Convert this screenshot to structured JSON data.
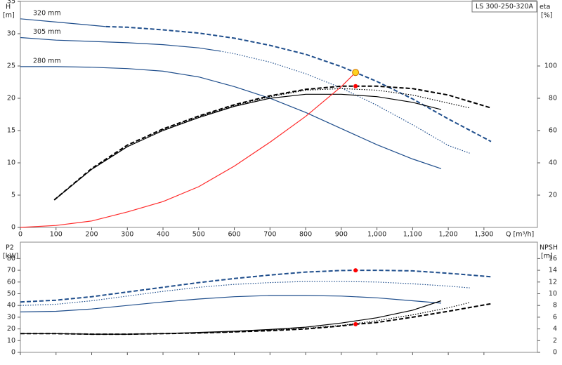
{
  "header": {
    "title": "LS 300-250-320A"
  },
  "chart_data": [
    {
      "type": "line",
      "xlabel": "Q [m³/h]",
      "ylabel": "H",
      "yunit": "[m]",
      "y2label": "eta",
      "y2unit": "[%]",
      "xlim": [
        0,
        1450
      ],
      "ylim": [
        0,
        35
      ],
      "y2lim": [
        0,
        140
      ],
      "xticks": [
        0,
        100,
        200,
        300,
        400,
        500,
        600,
        700,
        800,
        900,
        {
          "value": 1000,
          "label": "1,000"
        },
        {
          "value": 1100,
          "label": "1,100"
        },
        {
          "value": 1200,
          "label": "1,200"
        },
        {
          "value": 1300,
          "label": "1,300"
        }
      ],
      "yticks": [
        0,
        5,
        10,
        15,
        20,
        25,
        30,
        35
      ],
      "y2ticks": [
        20,
        40,
        60,
        80,
        100
      ],
      "show_xtick_labels": true,
      "series": [
        {
          "name": "320 mm",
          "color": "#1f4e8c",
          "style": "solid",
          "x": [
            0,
            100,
            200,
            240
          ],
          "values": [
            32.3,
            31.8,
            31.3,
            31.1
          ]
        },
        {
          "color": "#1f4e8c",
          "style": "dashed",
          "x": [
            240,
            300,
            400,
            500,
            600,
            700,
            800,
            900,
            940,
            1000,
            1100,
            1200,
            1320
          ],
          "values": [
            31.1,
            31.0,
            30.6,
            30.1,
            29.3,
            28.2,
            26.8,
            24.9,
            24.0,
            22.6,
            19.9,
            16.8,
            13.3
          ]
        },
        {
          "name": "305 mm",
          "color": "#1f4e8c",
          "style": "solid",
          "x": [
            0,
            100,
            200,
            300,
            400,
            500,
            560
          ],
          "values": [
            29.4,
            29.0,
            28.8,
            28.6,
            28.3,
            27.8,
            27.3
          ]
        },
        {
          "color": "#1f4e8c",
          "style": "dotted",
          "x": [
            560,
            600,
            700,
            800,
            900,
            1000,
            1100,
            1200,
            1260
          ],
          "values": [
            27.3,
            26.9,
            25.6,
            23.8,
            21.6,
            18.9,
            15.9,
            12.7,
            11.5
          ]
        },
        {
          "name": "280 mm",
          "color": "#1f4e8c",
          "style": "solid",
          "x": [
            0,
            100,
            200,
            300,
            400,
            500,
            600,
            700,
            800,
            900,
            1000,
            1100,
            1180
          ],
          "values": [
            24.9,
            24.9,
            24.8,
            24.6,
            24.2,
            23.3,
            21.8,
            20.0,
            17.8,
            15.3,
            12.8,
            10.6,
            9.1
          ]
        },
        {
          "color": "#000000",
          "style": "solid",
          "axis": "y2",
          "x": [
            95,
            200,
            300,
            400,
            500,
            600,
            700,
            800,
            900,
            1000,
            1100,
            1180
          ],
          "values": [
            17,
            36,
            50,
            60,
            68,
            75,
            80,
            82.5,
            82.5,
            81,
            77.5,
            73
          ]
        },
        {
          "color": "#000000",
          "style": "dotted",
          "axis": "y2",
          "x": [
            95,
            200,
            300,
            400,
            500,
            600,
            700,
            800,
            900,
            1000,
            1100,
            1200,
            1260
          ],
          "values": [
            17,
            36,
            50,
            60.5,
            68.5,
            75.5,
            81,
            85,
            86,
            85,
            82,
            77,
            74
          ]
        },
        {
          "color": "#000000",
          "style": "dashed",
          "axis": "y2",
          "x": [
            95,
            200,
            300,
            400,
            500,
            600,
            700,
            800,
            900,
            1000,
            1100,
            1200,
            1320
          ],
          "values": [
            17,
            36.5,
            51,
            61,
            69,
            76,
            81.5,
            85.5,
            87.5,
            87.5,
            86,
            82,
            74
          ]
        },
        {
          "color": "#ff2a2a",
          "style": "solid",
          "x": [
            0,
            100,
            200,
            300,
            400,
            500,
            600,
            700,
            800,
            900,
            940
          ],
          "values": [
            0,
            0.3,
            1.0,
            2.4,
            4.0,
            6.3,
            9.5,
            13.2,
            17.2,
            21.8,
            24.0
          ]
        }
      ],
      "markers": [
        {
          "x": 940,
          "y": 24.0,
          "color": "#ffd21f"
        },
        {
          "x": 940,
          "y": 87.5,
          "axis": "y2",
          "color": "#ff0000"
        }
      ]
    },
    {
      "type": "line",
      "ylabel": "P2",
      "yunit": "[kW]",
      "y2label": "NPSH",
      "y2unit": "[m]",
      "xlim": [
        0,
        1450
      ],
      "ylim": [
        0,
        94
      ],
      "y2lim": [
        0,
        18.8
      ],
      "xticks": [
        0,
        100,
        200,
        300,
        400,
        500,
        600,
        700,
        800,
        900,
        1000,
        1100,
        1200,
        1300
      ],
      "show_xtick_labels": false,
      "yticks": [
        0,
        10,
        20,
        30,
        40,
        50,
        60,
        70,
        80
      ],
      "y2ticks": [
        0,
        2,
        4,
        6,
        8,
        10,
        12,
        14,
        16
      ],
      "series": [
        {
          "color": "#1f4e8c",
          "style": "dashed",
          "x": [
            0,
            100,
            200,
            300,
            400,
            500,
            600,
            700,
            800,
            900,
            940,
            1000,
            1100,
            1200,
            1320
          ],
          "values": [
            43,
            44.5,
            47.5,
            51.5,
            55.5,
            59.5,
            63,
            66,
            68.5,
            69.8,
            70,
            70,
            69.5,
            67.5,
            64.5
          ]
        },
        {
          "color": "#1f4e8c",
          "style": "dotted",
          "x": [
            0,
            100,
            200,
            300,
            400,
            500,
            600,
            700,
            800,
            900,
            1000,
            1100,
            1200,
            1260
          ],
          "values": [
            40,
            41,
            44,
            48,
            52,
            55.5,
            58,
            59.5,
            60.5,
            60.5,
            60,
            58.5,
            56.5,
            55
          ]
        },
        {
          "color": "#1f4e8c",
          "style": "solid",
          "x": [
            0,
            100,
            200,
            300,
            400,
            500,
            600,
            700,
            800,
            900,
            1000,
            1100,
            1180
          ],
          "values": [
            34.5,
            35,
            37,
            40,
            43,
            45.5,
            47.5,
            48.5,
            48.5,
            48,
            46.5,
            44,
            42
          ]
        },
        {
          "color": "#000000",
          "style": "solid",
          "axis": "y2",
          "x": [
            0,
            100,
            200,
            300,
            400,
            500,
            600,
            700,
            800,
            900,
            1000,
            1100,
            1180
          ],
          "values": [
            3.2,
            3.2,
            3.1,
            3.1,
            3.2,
            3.4,
            3.6,
            3.9,
            4.3,
            5.0,
            5.9,
            7.2,
            8.8
          ]
        },
        {
          "color": "#000000",
          "style": "dotted",
          "axis": "y2",
          "x": [
            0,
            100,
            200,
            300,
            400,
            500,
            600,
            700,
            800,
            900,
            1000,
            1100,
            1200,
            1260
          ],
          "values": [
            3.2,
            3.2,
            3.1,
            3.1,
            3.2,
            3.3,
            3.5,
            3.8,
            4.1,
            4.6,
            5.4,
            6.4,
            7.6,
            8.5
          ]
        },
        {
          "color": "#000000",
          "style": "dashed",
          "axis": "y2",
          "x": [
            0,
            100,
            200,
            300,
            400,
            500,
            600,
            700,
            800,
            900,
            940,
            1000,
            1100,
            1200,
            1320
          ],
          "values": [
            3.2,
            3.2,
            3.1,
            3.1,
            3.2,
            3.3,
            3.5,
            3.7,
            4.0,
            4.5,
            4.8,
            5.1,
            6.0,
            7.0,
            8.3
          ]
        }
      ],
      "markers": [
        {
          "x": 940,
          "y": 70,
          "color": "#ff0000"
        },
        {
          "x": 940,
          "y": 4.8,
          "axis": "y2",
          "color": "#ff0000"
        }
      ]
    }
  ]
}
